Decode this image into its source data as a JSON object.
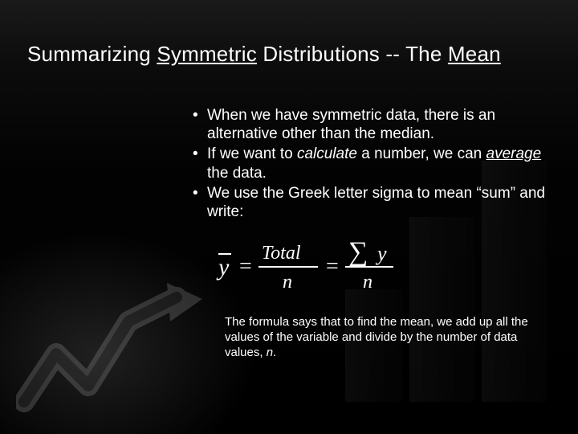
{
  "title_parts": {
    "p1": "Summarizing ",
    "p2_u": "Symmetric",
    "p3": " Distributions -- The ",
    "p4_u": "Mean"
  },
  "bullets": [
    {
      "html": "When we have symmetric data, there is an alternative other than the median."
    },
    {
      "html": "If we want to <em>calculate</em> a number, we can <span class=\"u\">average</span> the data."
    },
    {
      "html": "We use the Greek letter sigma to mean “sum” and write:"
    }
  ],
  "formula": {
    "lhs_var": "y",
    "num1": "Total",
    "den": "n",
    "sigma": "∑",
    "num2_var": "y"
  },
  "caption_html": "The formula says that to find the mean, we add up all the values of the variable and divide by the number of data values, <em>n</em>.",
  "colors": {
    "text": "#ffffff",
    "bg": "#000000"
  },
  "bg": {
    "bars_opacity": 0.1,
    "arrow_opacity": 0.22
  }
}
